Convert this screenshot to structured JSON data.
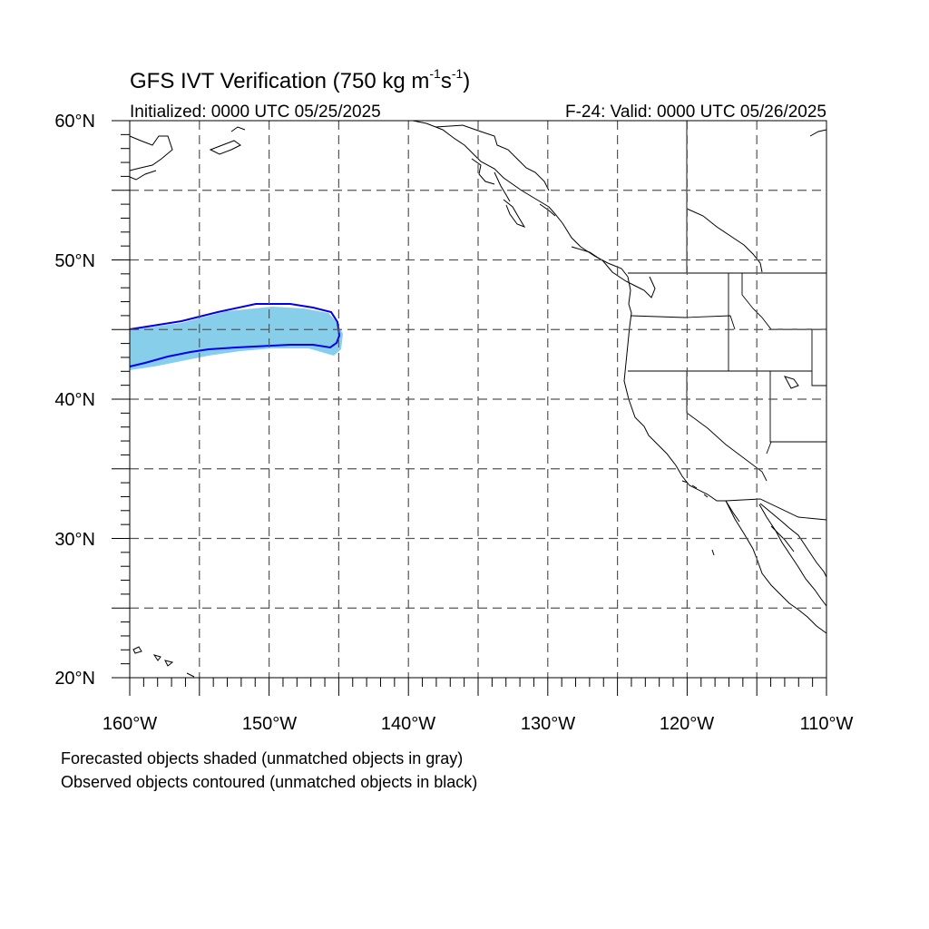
{
  "header": {
    "title": "GFS IVT Verification (750 kg m",
    "title_sup1": "-1",
    "title_mid": "s",
    "title_sup2": "-1",
    "title_end": ")",
    "initialized": "Initialized: 0000 UTC 05/25/2025",
    "valid": "F-24: Valid: 0000 UTC 05/26/2025"
  },
  "map": {
    "lon_range": [
      -160,
      -110
    ],
    "lat_range": [
      20,
      60
    ],
    "lat_labels": [
      "20°N",
      "30°N",
      "40°N",
      "50°N",
      "60°N"
    ],
    "lon_labels": [
      "160°W",
      "150°W",
      "140°W",
      "130°W",
      "120°W",
      "110°W"
    ],
    "grid_style": "dashed",
    "forecast_color": "#87ceeb",
    "observed_color": "#0000ee"
  },
  "legend": {
    "forecast_note": "Forecasted objects shaded (unmatched objects in gray)",
    "observed_note": "Observed objects contoured (unmatched objects in black)"
  }
}
